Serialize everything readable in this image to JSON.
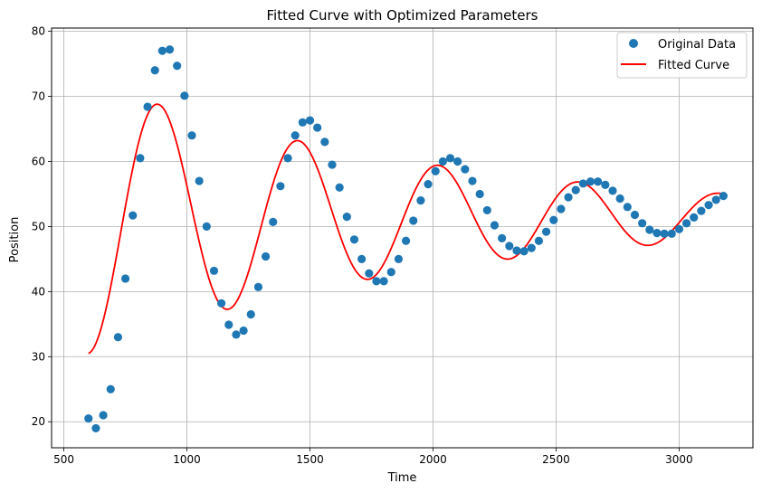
{
  "chart_data": {
    "type": "scatter",
    "title": "Fitted Curve with Optimized Parameters",
    "xlabel": "Time",
    "ylabel": "Position",
    "xlim": [
      450,
      3300
    ],
    "ylim": [
      16,
      80.5
    ],
    "xticks": [
      500,
      1000,
      1500,
      2000,
      2500,
      3000
    ],
    "yticks": [
      20,
      30,
      40,
      50,
      60,
      70,
      80
    ],
    "grid": true,
    "legend_position": "top-right",
    "colors": {
      "scatter": "#1f77b4",
      "line": "#ff0000",
      "grid": "#b0b0b0"
    },
    "series": [
      {
        "name": "Original Data",
        "kind": "scatter",
        "x": [
          600,
          630,
          660,
          690,
          720,
          750,
          780,
          810,
          840,
          870,
          900,
          930,
          960,
          990,
          1020,
          1050,
          1080,
          1110,
          1140,
          1170,
          1200,
          1230,
          1260,
          1290,
          1320,
          1350,
          1380,
          1410,
          1440,
          1470,
          1500,
          1530,
          1560,
          1590,
          1620,
          1650,
          1680,
          1710,
          1740,
          1770,
          1800,
          1830,
          1860,
          1890,
          1920,
          1950,
          1980,
          2010,
          2040,
          2070,
          2100,
          2130,
          2160,
          2190,
          2220,
          2250,
          2280,
          2310,
          2340,
          2370,
          2400,
          2430,
          2460,
          2490,
          2520,
          2550,
          2580,
          2610,
          2640,
          2670,
          2700,
          2730,
          2760,
          2790,
          2820,
          2850,
          2880,
          2910,
          2940,
          2970,
          3000,
          3030,
          3060,
          3090,
          3120,
          3150,
          3180
        ],
        "y": [
          20.5,
          19.0,
          21.0,
          25.0,
          33.0,
          42.0,
          51.7,
          60.5,
          68.4,
          74.0,
          77.0,
          77.2,
          74.7,
          70.1,
          64.0,
          57.0,
          50.0,
          43.2,
          38.2,
          34.9,
          33.4,
          34.0,
          36.5,
          40.7,
          45.4,
          50.7,
          56.2,
          60.5,
          64.0,
          66.0,
          66.3,
          65.2,
          63.0,
          59.5,
          56.0,
          51.5,
          48.0,
          45.0,
          42.8,
          41.6,
          41.6,
          43.0,
          45.0,
          47.8,
          50.9,
          54.0,
          56.5,
          58.5,
          60.0,
          60.5,
          60.0,
          58.8,
          57.0,
          55.0,
          52.5,
          50.2,
          48.2,
          47.0,
          46.3,
          46.2,
          46.7,
          47.8,
          49.2,
          51.0,
          52.7,
          54.5,
          55.6,
          56.6,
          56.9,
          56.9,
          56.4,
          55.5,
          54.3,
          53.0,
          51.8,
          50.5,
          49.5,
          49.0,
          48.9,
          48.9,
          49.6,
          50.5,
          51.4,
          52.4,
          53.3,
          54.1,
          54.7
        ]
      },
      {
        "name": "Fitted Curve",
        "kind": "line",
        "model": {
          "A": 21,
          "k": 0.000687,
          "omega": 0.011033,
          "phi": -1.572,
          "c": 51.5,
          "t0": 600
        }
      }
    ]
  }
}
